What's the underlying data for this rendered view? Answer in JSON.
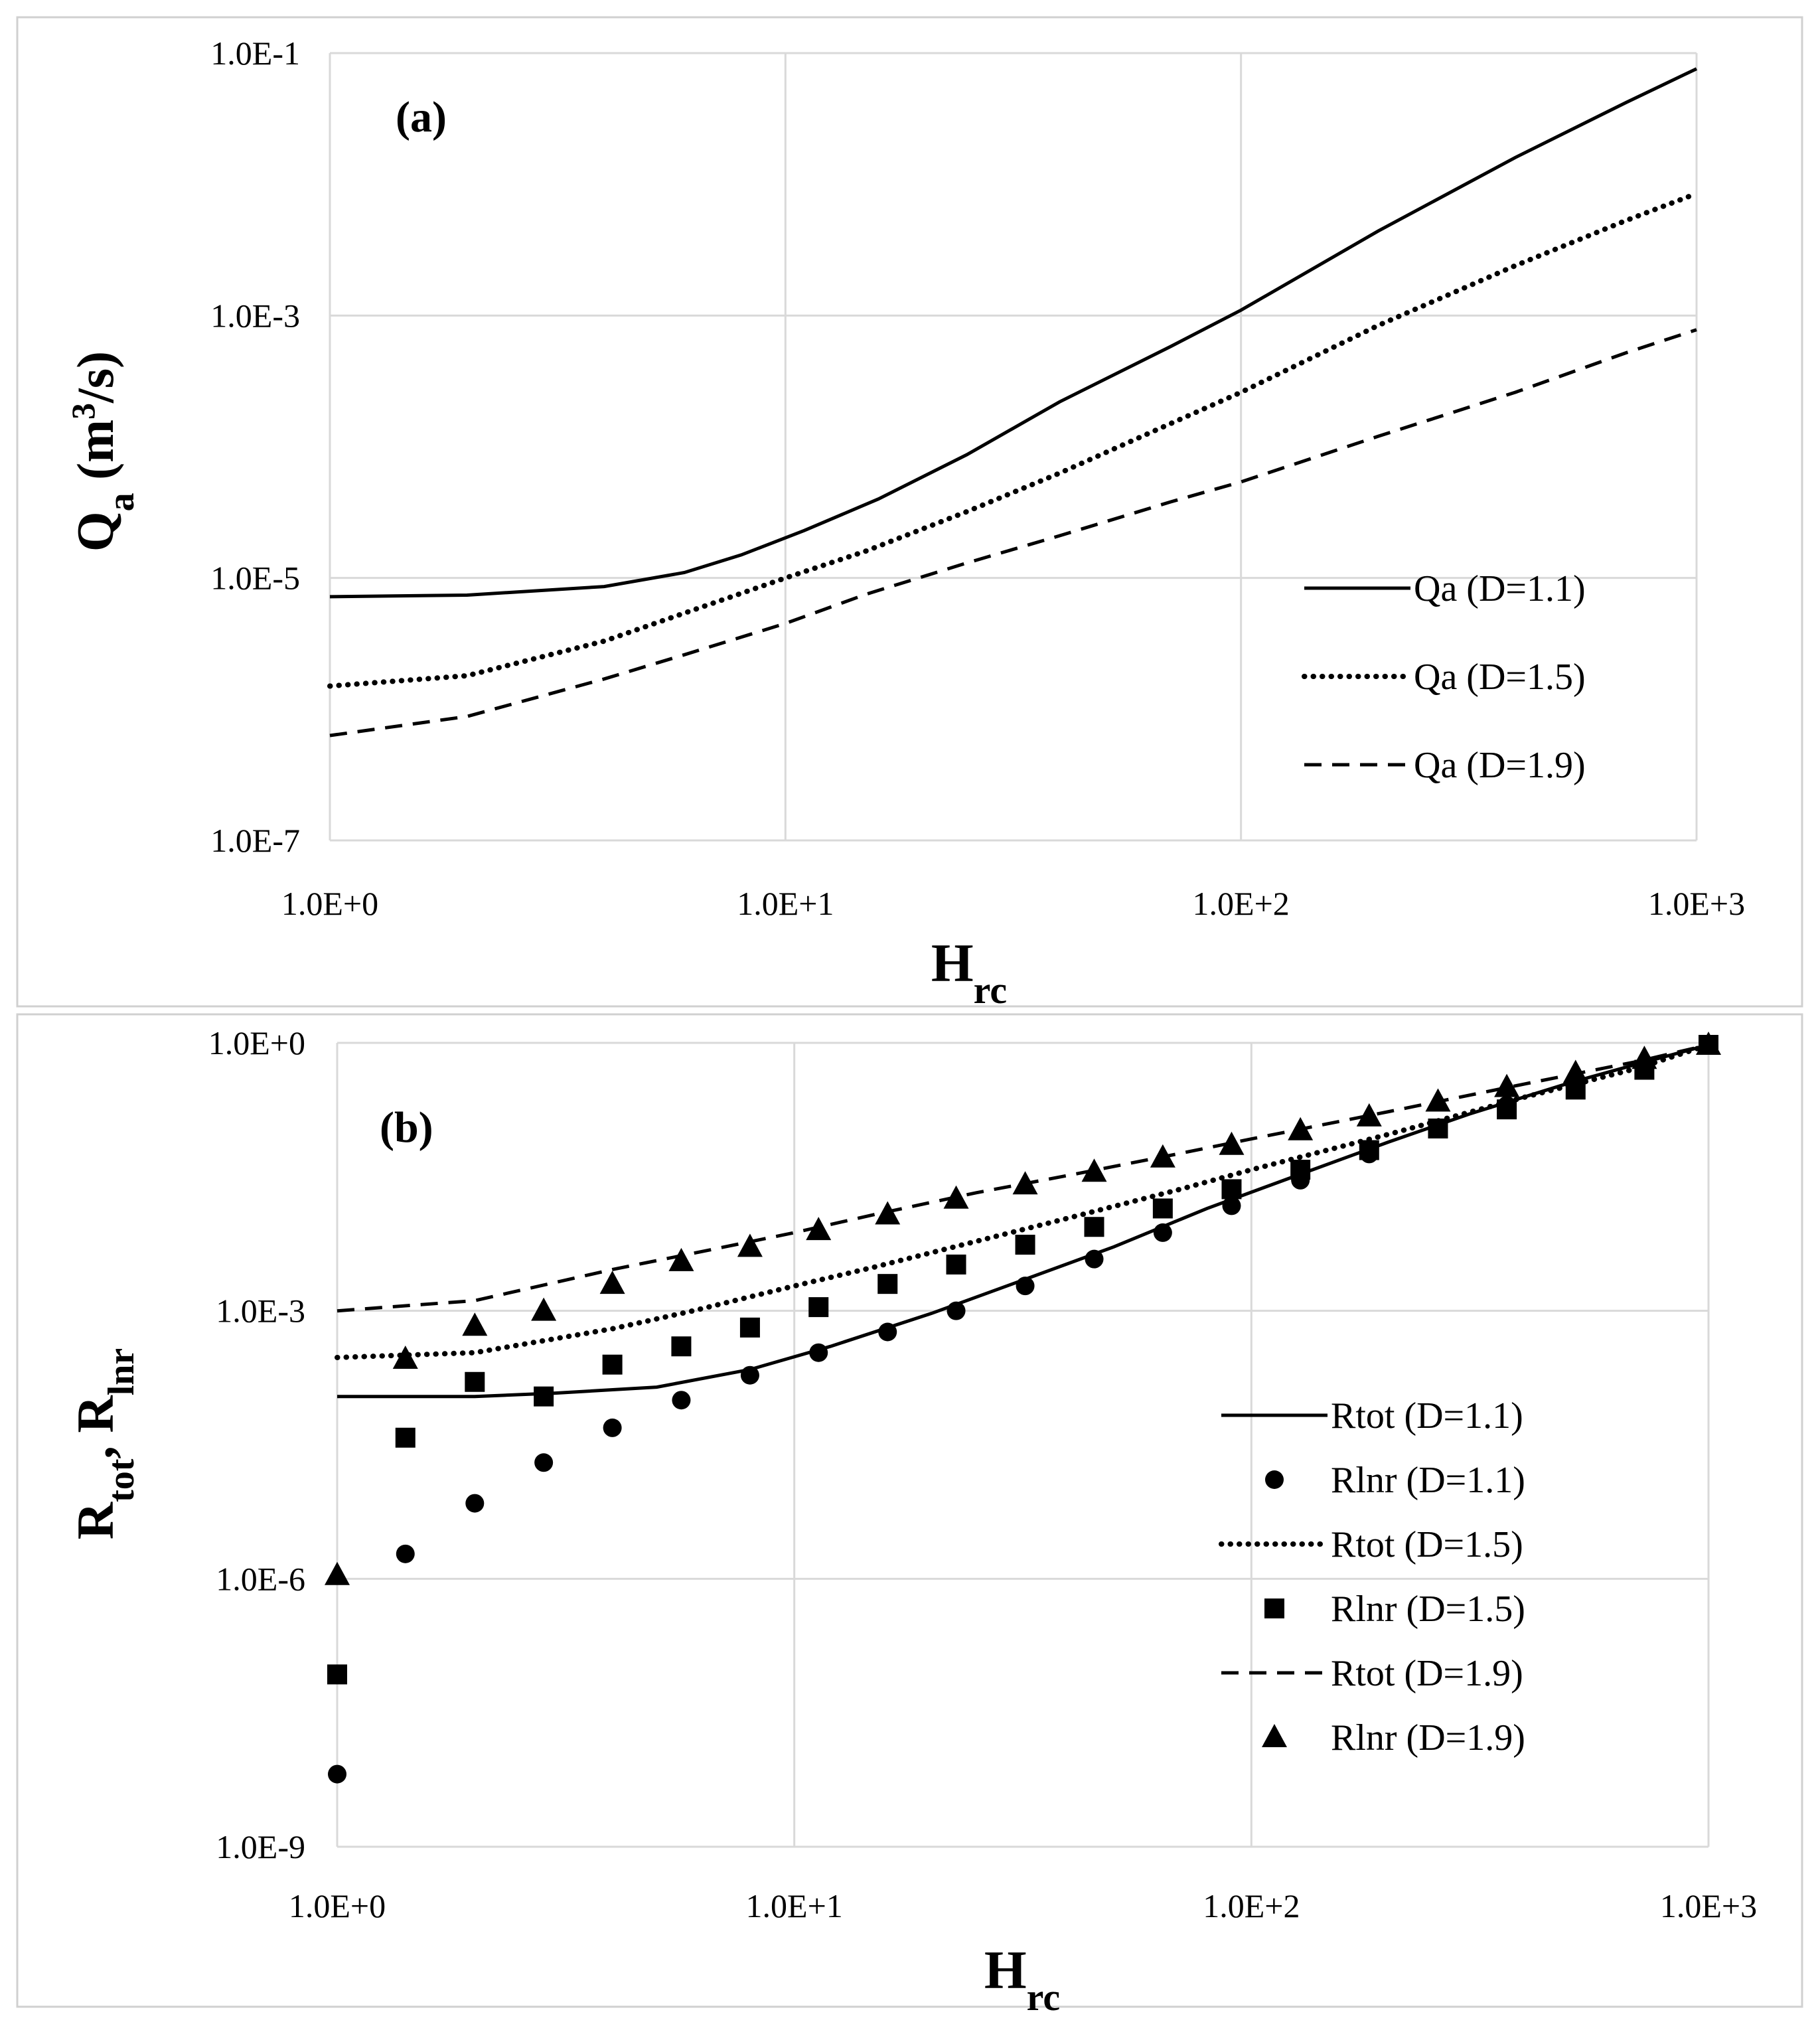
{
  "chart_data": [
    {
      "type": "line",
      "panel_label": "(a)",
      "xlabel": "H",
      "xlabel_sub": "rc",
      "ylabel": "Q",
      "ylabel_sub": "a",
      "ylabel_unit_open": " (m",
      "ylabel_unit_sup": "3",
      "ylabel_unit_close": "/s)",
      "xscale": "log",
      "yscale": "log",
      "xlim": [
        1,
        1000
      ],
      "ylim": [
        1e-07,
        0.1
      ],
      "xticks": [
        1,
        10,
        100,
        1000
      ],
      "xtick_labels": [
        "1.0E+0",
        "1.0E+1",
        "1.0E+2",
        "1.0E+3"
      ],
      "yticks": [
        1e-07,
        1e-05,
        0.001,
        0.1
      ],
      "ytick_labels": [
        "1.0E-7",
        "1.0E-5",
        "1.0E-3",
        "1.0E-1"
      ],
      "grid": true,
      "legend_position": "lower-right",
      "series": [
        {
          "name": "Qa (D=1.1)",
          "style": "solid",
          "x": [
            1,
            2,
            4,
            6,
            8,
            11,
            16,
            25,
            40,
            70,
            100,
            200,
            400,
            700,
            1000
          ],
          "y": [
            7.2e-06,
            7.4e-06,
            8.6e-06,
            1.1e-05,
            1.5e-05,
            2.3e-05,
            4e-05,
            8.7e-05,
            0.00022,
            0.00058,
            0.0011,
            0.0044,
            0.016,
            0.042,
            0.076
          ]
        },
        {
          "name": "Qa (D=1.5)",
          "style": "dotted",
          "x": [
            1,
            2,
            4,
            6,
            10,
            15,
            25,
            40,
            70,
            100,
            200,
            400,
            700,
            1000
          ],
          "y": [
            1.5e-06,
            1.8e-06,
            3.3e-06,
            5.4e-06,
            1e-05,
            1.6e-05,
            3.2e-05,
            6.3e-05,
            0.00015,
            0.00026,
            0.00084,
            0.0024,
            0.0053,
            0.0085
          ]
        },
        {
          "name": "Qa (D=1.9)",
          "style": "dashed",
          "x": [
            1,
            2,
            4,
            6,
            10,
            15,
            25,
            40,
            70,
            100,
            200,
            400,
            700,
            1000
          ],
          "y": [
            6.3e-07,
            8.8e-07,
            1.7e-06,
            2.6e-06,
            4.5e-06,
            7.5e-06,
            1.3e-05,
            2.1e-05,
            3.8e-05,
            5.4e-05,
            0.00012,
            0.00026,
            0.00052,
            0.00078
          ]
        }
      ]
    },
    {
      "type": "line+scatter",
      "panel_label": "(b)",
      "xlabel": "H",
      "xlabel_sub": "rc",
      "ylabel_parts": [
        "R",
        "tot",
        ", R",
        "lnr"
      ],
      "xscale": "log",
      "yscale": "log",
      "xlim": [
        1,
        1000
      ],
      "ylim": [
        1e-09,
        1
      ],
      "xticks": [
        1,
        10,
        100,
        1000
      ],
      "xtick_labels": [
        "1.0E+0",
        "1.0E+1",
        "1.0E+2",
        "1.0E+3"
      ],
      "yticks": [
        1e-09,
        1e-06,
        0.001,
        1
      ],
      "ytick_labels": [
        "1.0E-9",
        "1.0E-6",
        "1.0E-3",
        "1.0E+0"
      ],
      "grid": true,
      "legend_position": "lower-right",
      "series": [
        {
          "name": "Rtot (D=1.1)",
          "style": "solid",
          "x": [
            1,
            2,
            3,
            5,
            8,
            12,
            20,
            30,
            50,
            80,
            120,
            200,
            300,
            500,
            700,
            1000
          ],
          "y": [
            0.00011,
            0.00011,
            0.00012,
            0.00014,
            0.00022,
            0.0004,
            0.00094,
            0.002,
            0.0052,
            0.014,
            0.03,
            0.078,
            0.16,
            0.36,
            0.58,
            0.95
          ]
        },
        {
          "name": "Rlnr (D=1.1)",
          "marker": "circle",
          "x": [
            1,
            1.41,
            2,
            2.83,
            4,
            5.66,
            8,
            11.3,
            16,
            22.6,
            32,
            45.3,
            64,
            90.5,
            128,
            181,
            256,
            362,
            512,
            724,
            1000
          ],
          "y": [
            6.5e-09,
            1.9e-06,
            7e-06,
            2e-05,
            4.9e-05,
            0.0001,
            0.00019,
            0.00034,
            0.00058,
            0.001,
            0.0019,
            0.0038,
            0.0075,
            0.015,
            0.029,
            0.057,
            0.11,
            0.2,
            0.34,
            0.56,
            0.95
          ]
        },
        {
          "name": "Rtot (D=1.5)",
          "style": "dotted",
          "x": [
            1,
            2,
            4,
            6,
            10,
            15,
            25,
            40,
            70,
            100,
            200,
            400,
            700,
            1000
          ],
          "y": [
            0.0003,
            0.00034,
            0.00063,
            0.001,
            0.0019,
            0.0031,
            0.006,
            0.011,
            0.023,
            0.038,
            0.095,
            0.25,
            0.52,
            0.95
          ]
        },
        {
          "name": "Rlnr (D=1.5)",
          "marker": "square",
          "x": [
            1,
            1.41,
            2,
            2.83,
            4,
            5.66,
            8,
            11.3,
            16,
            22.6,
            32,
            45.3,
            64,
            90.5,
            128,
            181,
            256,
            362,
            512,
            724,
            1000
          ],
          "y": [
            8.5e-08,
            3.8e-05,
            0.00016,
            0.00011,
            0.00025,
            0.0004,
            0.00065,
            0.0011,
            0.002,
            0.0033,
            0.0055,
            0.0087,
            0.014,
            0.023,
            0.038,
            0.063,
            0.11,
            0.18,
            0.3,
            0.5,
            0.95
          ]
        },
        {
          "name": "Rtot (D=1.9)",
          "style": "dashed",
          "x": [
            1,
            2,
            4,
            6,
            10,
            15,
            25,
            40,
            70,
            100,
            200,
            400,
            700,
            1000
          ],
          "y": [
            0.001,
            0.0013,
            0.0029,
            0.0044,
            0.0075,
            0.012,
            0.021,
            0.033,
            0.058,
            0.084,
            0.17,
            0.35,
            0.62,
            0.95
          ]
        },
        {
          "name": "Rlnr (D=1.9)",
          "marker": "triangle",
          "x": [
            1,
            1.41,
            2,
            2.83,
            4,
            5.66,
            8,
            11.3,
            16,
            22.6,
            32,
            45.3,
            64,
            90.5,
            128,
            181,
            256,
            362,
            512,
            724,
            1000
          ],
          "y": [
            1.1e-06,
            0.00029,
            0.00068,
            0.001,
            0.002,
            0.0036,
            0.0052,
            0.008,
            0.012,
            0.018,
            0.026,
            0.036,
            0.052,
            0.072,
            0.105,
            0.15,
            0.22,
            0.32,
            0.46,
            0.66,
            0.95
          ]
        }
      ]
    }
  ]
}
